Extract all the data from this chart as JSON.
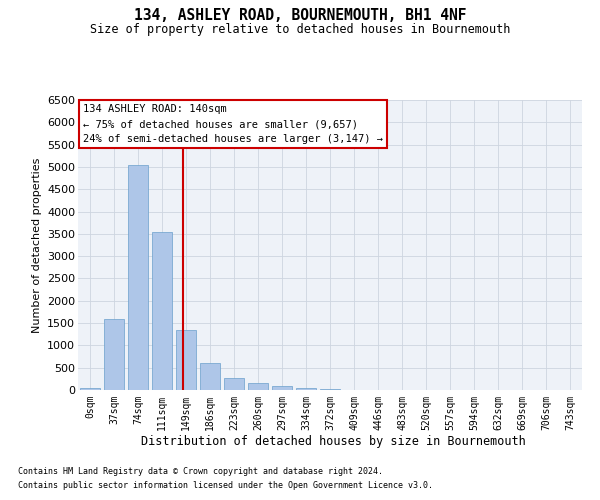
{
  "title": "134, ASHLEY ROAD, BOURNEMOUTH, BH1 4NF",
  "subtitle": "Size of property relative to detached houses in Bournemouth",
  "xlabel": "Distribution of detached houses by size in Bournemouth",
  "ylabel": "Number of detached properties",
  "bar_labels": [
    "0sqm",
    "37sqm",
    "74sqm",
    "111sqm",
    "149sqm",
    "186sqm",
    "223sqm",
    "260sqm",
    "297sqm",
    "334sqm",
    "372sqm",
    "409sqm",
    "446sqm",
    "483sqm",
    "520sqm",
    "557sqm",
    "594sqm",
    "632sqm",
    "669sqm",
    "706sqm",
    "743sqm"
  ],
  "bar_values": [
    50,
    1600,
    5050,
    3550,
    1350,
    600,
    275,
    150,
    90,
    50,
    20,
    10,
    5,
    0,
    0,
    0,
    0,
    0,
    0,
    0,
    0
  ],
  "bar_color": "#aec6e8",
  "bar_edge_color": "#6aa0cc",
  "vline_x": 3.87,
  "vline_color": "#cc0000",
  "ylim": [
    0,
    6500
  ],
  "yticks": [
    0,
    500,
    1000,
    1500,
    2000,
    2500,
    3000,
    3500,
    4000,
    4500,
    5000,
    5500,
    6000,
    6500
  ],
  "annotation_text": "134 ASHLEY ROAD: 140sqm\n← 75% of detached houses are smaller (9,657)\n24% of semi-detached houses are larger (3,147) →",
  "annotation_box_color": "#cc0000",
  "grid_color": "#cdd5e0",
  "background_color": "#eef2f8",
  "footnote1": "Contains HM Land Registry data © Crown copyright and database right 2024.",
  "footnote2": "Contains public sector information licensed under the Open Government Licence v3.0."
}
